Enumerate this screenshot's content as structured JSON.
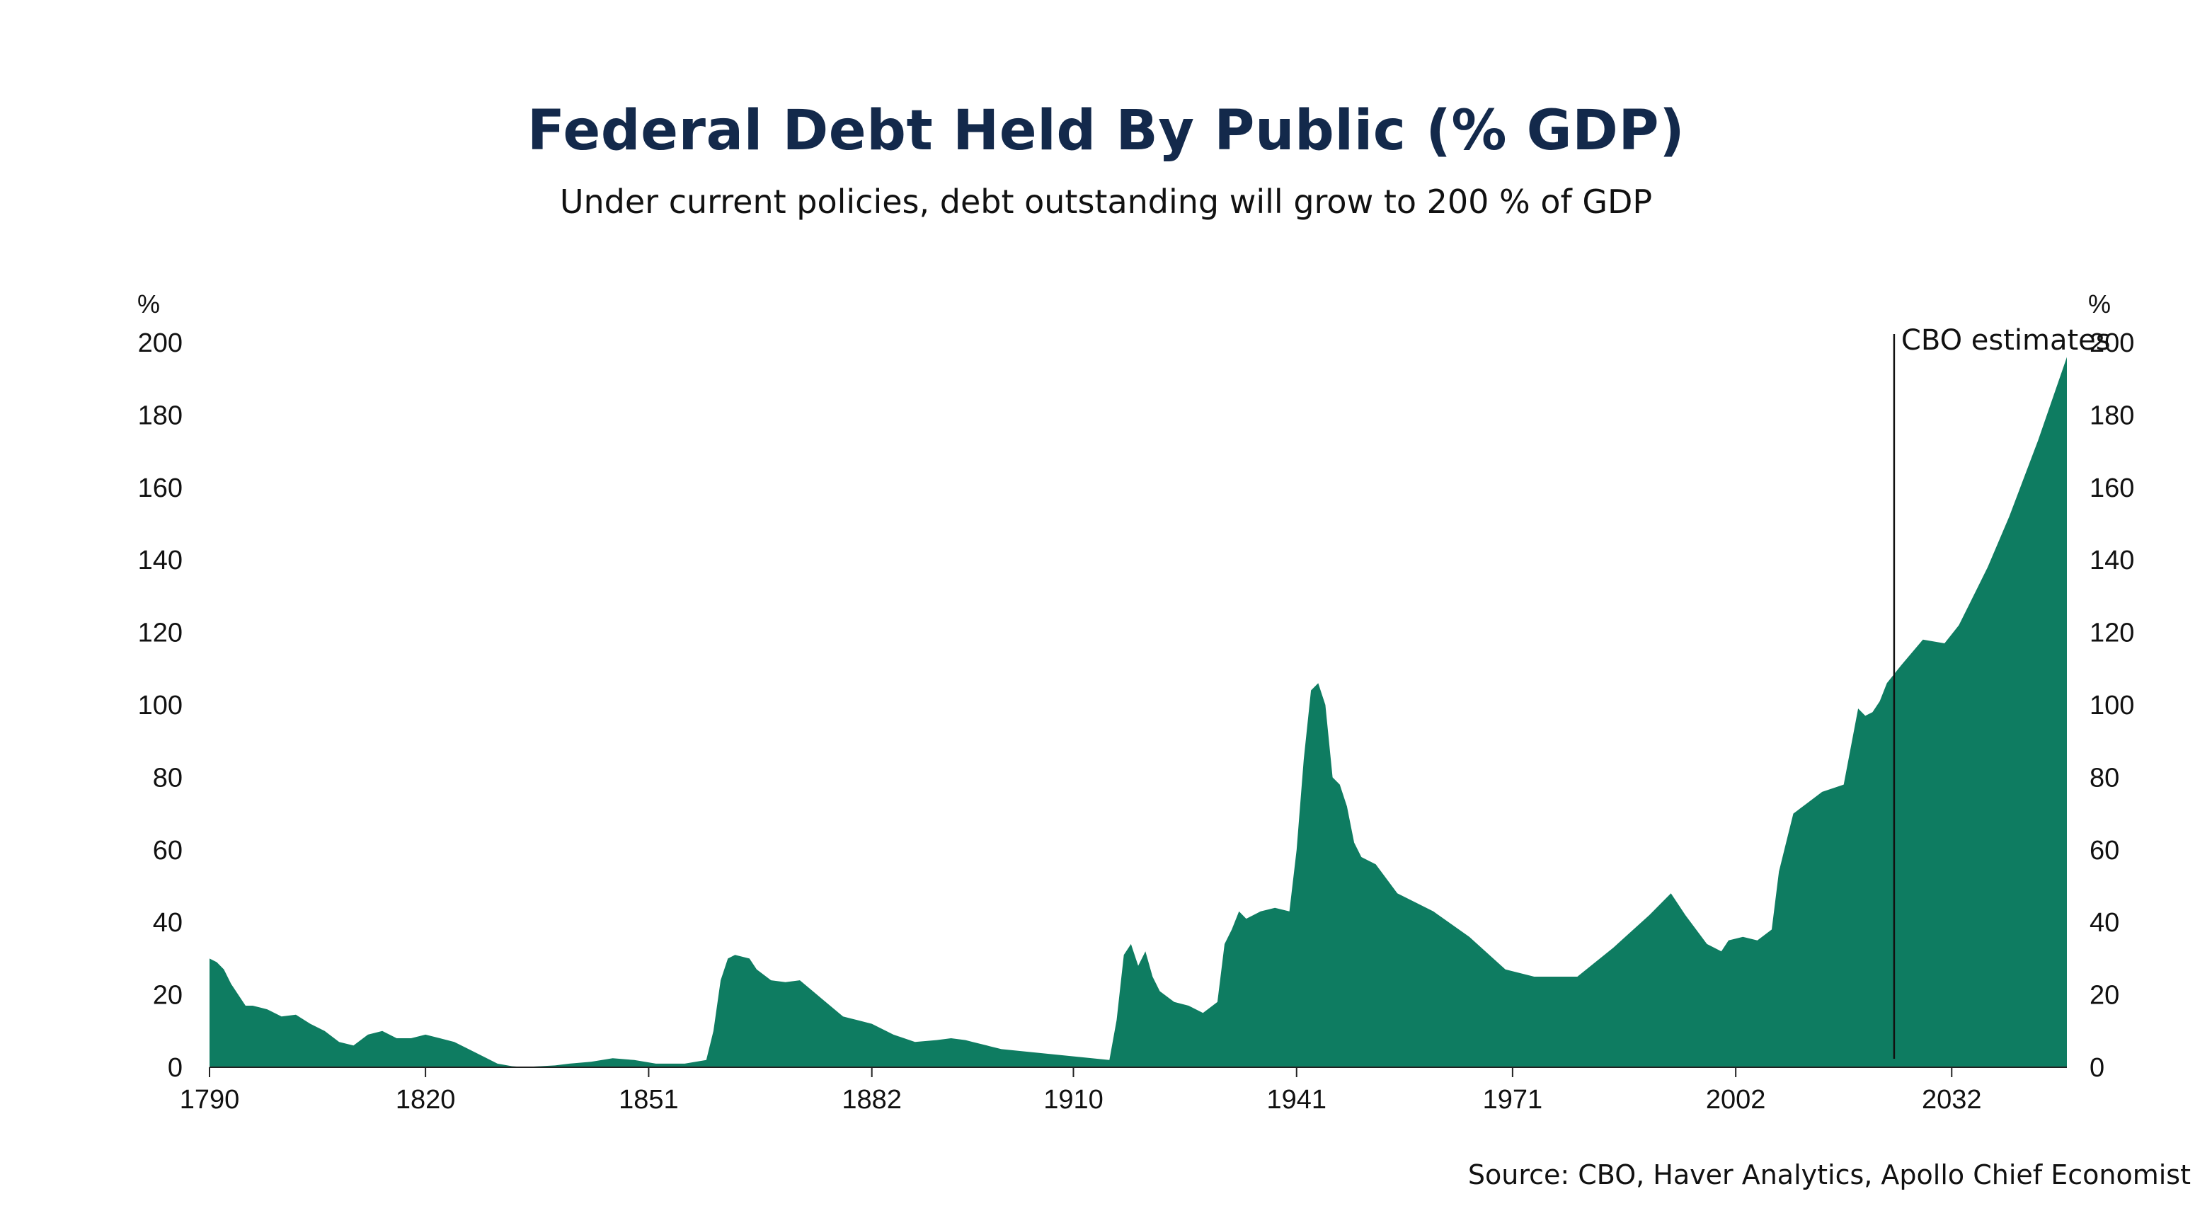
{
  "chart_data": {
    "type": "area",
    "title": "Federal Debt Held By Public (% GDP)",
    "subtitle": "Under current policies, debt outstanding will grow to 200 % of GDP",
    "source": "Source: CBO, Haver Analytics, Apollo Chief Economist",
    "y_unit_left": "%",
    "y_unit_right": "%",
    "ylim": [
      0,
      200
    ],
    "y_ticks": [
      0,
      20,
      40,
      60,
      80,
      100,
      120,
      140,
      160,
      180,
      200
    ],
    "xlim": [
      1790,
      2048
    ],
    "x_ticks": [
      1790,
      1820,
      1851,
      1882,
      1910,
      1941,
      1971,
      2002,
      2032
    ],
    "fill_color": "#0e7c61",
    "annotation": {
      "label": "CBO estimates",
      "x": 2024
    },
    "series": [
      {
        "x": [
          1790,
          1791,
          1792,
          1793,
          1794,
          1795,
          1796,
          1797,
          1798,
          1800,
          1802,
          1804,
          1806,
          1808,
          1810,
          1812,
          1814,
          1815,
          1816,
          1818,
          1820,
          1822,
          1824,
          1826,
          1828,
          1830,
          1832,
          1834,
          1835,
          1838,
          1840,
          1843,
          1846,
          1849,
          1852,
          1856,
          1859,
          1860,
          1861,
          1862,
          1863,
          1865,
          1866,
          1868,
          1870,
          1872,
          1875,
          1878,
          1879,
          1880,
          1882,
          1885,
          1888,
          1891,
          1893,
          1895,
          1896,
          1898,
          1900,
          1905,
          1910,
          1915,
          1916,
          1917,
          1918,
          1919,
          1920,
          1921,
          1922,
          1924,
          1926,
          1928,
          1930,
          1931,
          1932,
          1933,
          1934,
          1935,
          1936,
          1938,
          1940,
          1941,
          1942,
          1943,
          1944,
          1945,
          1946,
          1947,
          1948,
          1949,
          1950,
          1952,
          1955,
          1960,
          1965,
          1970,
          1974,
          1980,
          1985,
          1990,
          1993,
          1995,
          1998,
          2000,
          2001,
          2003,
          2005,
          2007,
          2008,
          2009,
          2010,
          2012,
          2014,
          2017,
          2019,
          2020,
          2021,
          2022,
          2023,
          2025,
          2028,
          2031,
          2033,
          2034,
          2037,
          2040,
          2044,
          2048
        ],
        "values": [
          30,
          29,
          27,
          23,
          20,
          17,
          17,
          16.5,
          16,
          14,
          14.5,
          12,
          10,
          7,
          6,
          9,
          10,
          9,
          8,
          8,
          9,
          8,
          7,
          5,
          3,
          1,
          0.3,
          0,
          0.2,
          0.5,
          1,
          1.5,
          2.5,
          2,
          1,
          1,
          2,
          10,
          24,
          30,
          31,
          30,
          27,
          24,
          23.5,
          24,
          19,
          14,
          13.5,
          13,
          12,
          9,
          7,
          7.5,
          8,
          7.5,
          7,
          6,
          5,
          4,
          3,
          2,
          13,
          31,
          34,
          28,
          32,
          25,
          21,
          18,
          17,
          15,
          18,
          34,
          38,
          43,
          41,
          42,
          43,
          44,
          43,
          60,
          85,
          104,
          106,
          100,
          80,
          78,
          72,
          62,
          58,
          56,
          48,
          43,
          36,
          27,
          25,
          25,
          33,
          42,
          48,
          42,
          34,
          32,
          35,
          36,
          35,
          38,
          54,
          62,
          70,
          73,
          76,
          78,
          99,
          97,
          98,
          101,
          106,
          111,
          118,
          117,
          122,
          126,
          138,
          152,
          173,
          196
        ]
      }
    ]
  }
}
